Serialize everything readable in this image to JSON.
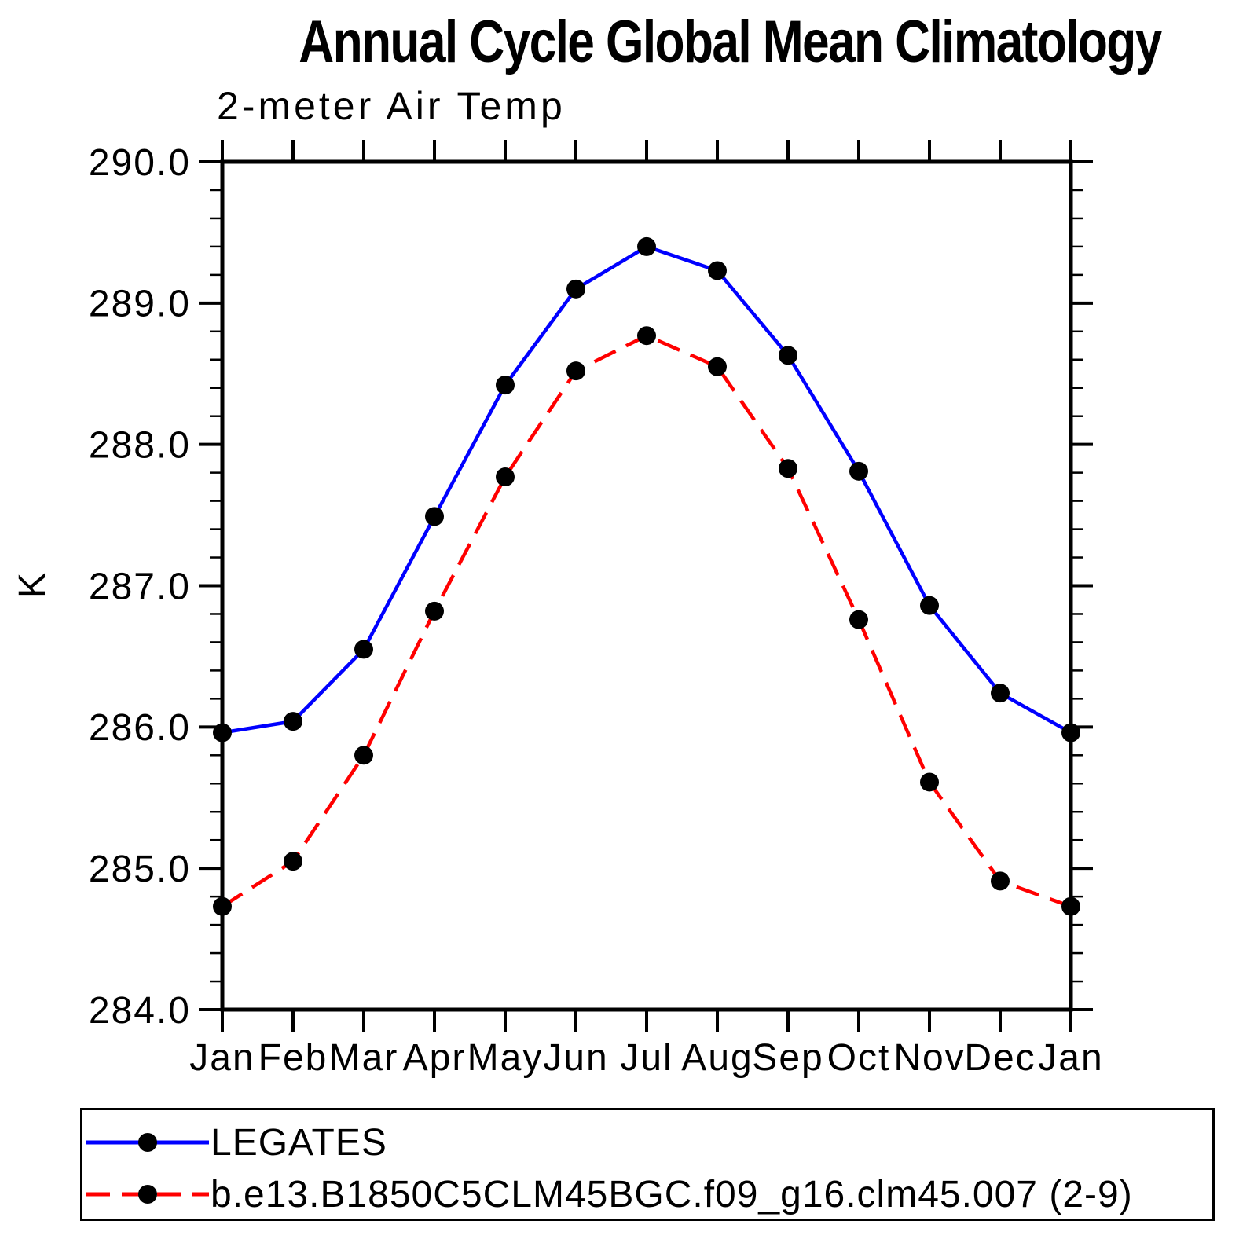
{
  "title": "Annual Cycle Global Mean Climatology",
  "subtitle": "2-meter Air Temp",
  "y_axis_label": "K",
  "colors": {
    "series1": "#0000ff",
    "series2": "#ff0000",
    "marker": "#000000",
    "axis": "#000000",
    "background": "#ffffff"
  },
  "legend": {
    "items": [
      {
        "label": "LEGATES",
        "line_style": "solid",
        "color": "#0000ff"
      },
      {
        "label": "b.e13.B1850C5CLM45BGC.f09_g16.clm45.007 (2-9)",
        "line_style": "dashed",
        "color": "#ff0000"
      }
    ]
  },
  "chart_data": {
    "type": "line",
    "title": "Annual Cycle Global Mean Climatology",
    "subtitle": "2-meter Air Temp",
    "xlabel": "",
    "ylabel": "K",
    "x_tick_labels": [
      "Jan",
      "Feb",
      "Mar",
      "Apr",
      "May",
      "Jun",
      "Jul",
      "Aug",
      "Sep",
      "Oct",
      "Nov",
      "Dec",
      "Jan"
    ],
    "ylim": [
      284.0,
      290.0
    ],
    "y_major_ticks": [
      284.0,
      285.0,
      286.0,
      287.0,
      288.0,
      289.0,
      290.0
    ],
    "y_tick_labels": [
      "284.0",
      "285.0",
      "286.0",
      "287.0",
      "288.0",
      "289.0",
      "290.0"
    ],
    "y_minor_step": 0.2,
    "grid": false,
    "legend_position": "bottom",
    "series": [
      {
        "name": "LEGATES",
        "color": "#0000ff",
        "style": "solid",
        "marker": "circle",
        "values": [
          285.96,
          286.04,
          286.55,
          287.49,
          288.42,
          289.1,
          289.4,
          289.23,
          288.63,
          287.81,
          286.86,
          286.24,
          285.96
        ]
      },
      {
        "name": "b.e13.B1850C5CLM45BGC.f09_g16.clm45.007 (2-9)",
        "color": "#ff0000",
        "style": "dashed",
        "marker": "circle",
        "values": [
          284.73,
          285.05,
          285.8,
          286.82,
          287.77,
          288.52,
          288.77,
          288.55,
          287.83,
          286.76,
          285.61,
          284.91,
          284.73
        ]
      }
    ]
  }
}
